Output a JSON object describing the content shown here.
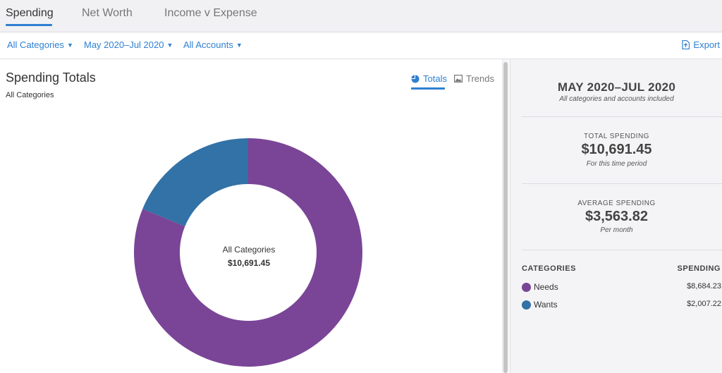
{
  "tabs": [
    {
      "label": "Spending",
      "active": true
    },
    {
      "label": "Net Worth",
      "active": false
    },
    {
      "label": "Income v Expense",
      "active": false
    }
  ],
  "filters": {
    "category": "All Categories",
    "date_range": "May 2020–Jul 2020",
    "accounts": "All Accounts",
    "export_label": "Export"
  },
  "report": {
    "title": "Spending Totals",
    "subtitle": "All Categories",
    "views": {
      "totals": "Totals",
      "trends": "Trends"
    }
  },
  "chart_data": {
    "type": "pie",
    "variant": "donut",
    "center_label": "All Categories",
    "center_value": "$10,691.45",
    "slices": [
      {
        "name": "Needs",
        "value": 8684.23,
        "color": "#7a4597"
      },
      {
        "name": "Wants",
        "value": 2007.22,
        "color": "#3272a6"
      }
    ]
  },
  "summary": {
    "range": "MAY 2020–JUL 2020",
    "range_note": "All categories and accounts included",
    "total_label": "TOTAL SPENDING",
    "total_value": "$10,691.45",
    "total_note": "For this time period",
    "average_label": "AVERAGE SPENDING",
    "average_value": "$3,563.82",
    "average_note": "Per month",
    "categories_header": "CATEGORIES",
    "spending_header": "SPENDING",
    "categories": [
      {
        "name": "Needs",
        "amount": "$8,684.23",
        "color": "#7a4597"
      },
      {
        "name": "Wants",
        "amount": "$2,007.22",
        "color": "#3272a6"
      }
    ]
  },
  "colors": {
    "accent": "#2f80d1",
    "needs": "#7a4597",
    "wants": "#3272a6"
  },
  "icons": {
    "export": "export-icon",
    "totals": "pie-chart-icon",
    "trends": "chart-image-icon",
    "dropdown": "caret-down-icon"
  }
}
